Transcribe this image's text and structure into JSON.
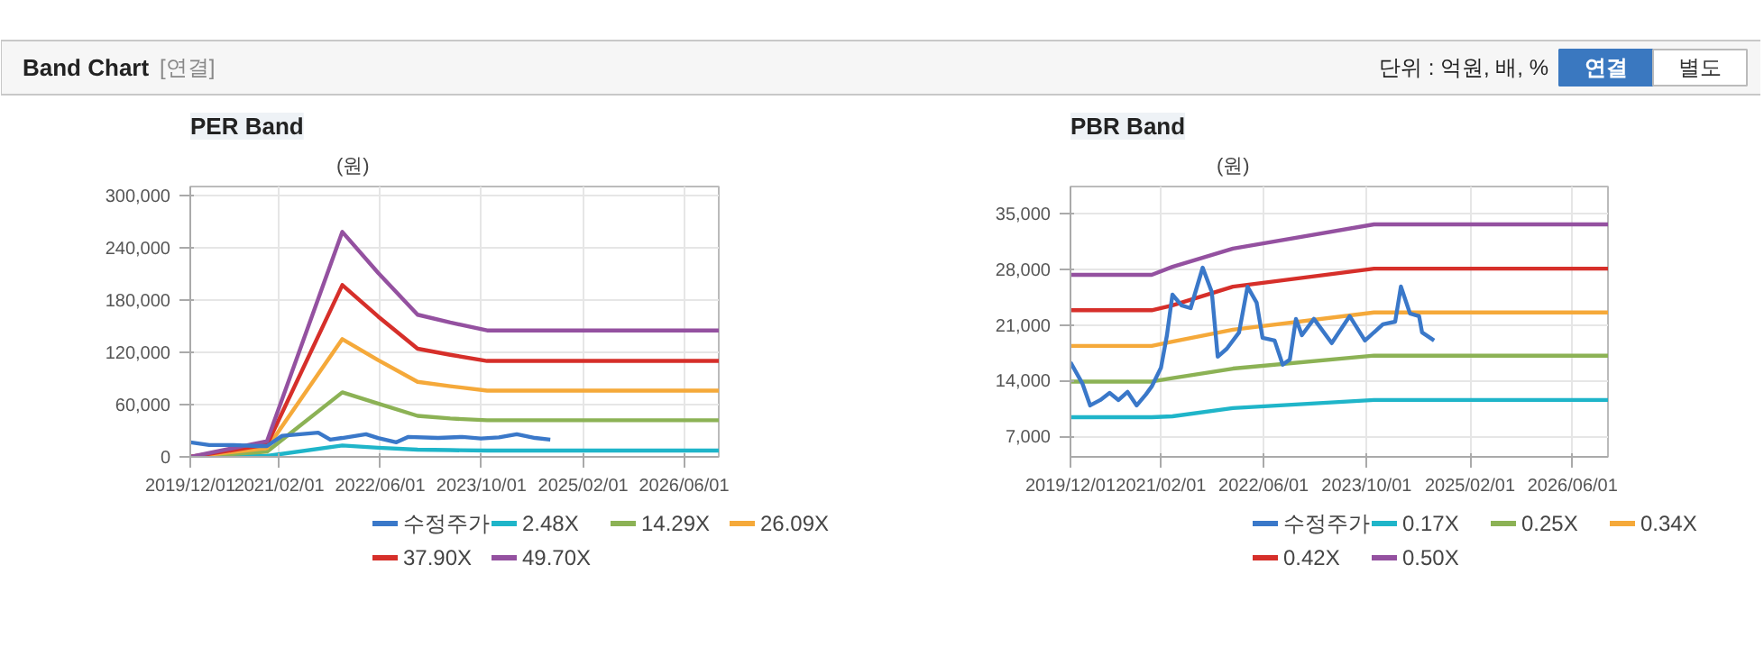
{
  "chart_data": [
    {
      "type": "other",
      "title": "Band Chart",
      "annotations": [
        "[연결]",
        "단위 : 억원, 배, %",
        "연결",
        "별도"
      ]
    },
    {
      "type": "line",
      "title": "PER Band",
      "ylabel": "(원)",
      "grid": true,
      "legend": "bottom",
      "xlim": [
        "2019-12-01",
        "2026-11-15"
      ],
      "xticks": [
        {
          "value": "2019-12-01",
          "label": "2019/12/01"
        },
        {
          "value": "2021-02-01",
          "label": "2021/02/01"
        },
        {
          "value": "2022-06-01",
          "label": "2022/06/01"
        },
        {
          "value": "2023-10-01",
          "label": "2023/10/01"
        },
        {
          "value": "2025-02-01",
          "label": "2025/02/01"
        },
        {
          "value": "2026-06-01",
          "label": "2026/06/01"
        }
      ],
      "ylim": [
        0,
        310000
      ],
      "yticks": [
        0,
        {
          "value": 60000,
          "label": "60,000"
        },
        {
          "value": 120000,
          "label": "120,000"
        },
        {
          "value": 180000,
          "label": "180,000"
        },
        {
          "value": 240000,
          "label": "240,000"
        },
        {
          "value": 300000,
          "label": "300,000"
        }
      ],
      "series": [
        {
          "name": "수정주가",
          "color": "#3a78c9",
          "x": [
            "2019-12-01",
            "2020-03-01",
            "2020-06-25",
            "2020-10-20",
            "2020-12-04",
            "2021-02-15",
            "2021-08-07",
            "2021-10-04",
            "2021-12-01",
            "2022-03-25",
            "2022-05-22",
            "2022-08-18",
            "2022-10-15",
            "2023-03-07",
            "2023-07-01",
            "2023-09-28",
            "2023-12-24",
            "2024-03-19",
            "2024-06-15",
            "2024-08-27"
          ],
          "values": [
            16700,
            13600,
            13600,
            12400,
            12400,
            24100,
            27800,
            19800,
            21650,
            26000,
            21650,
            16700,
            22900,
            21650,
            22900,
            21000,
            22300,
            26000,
            21650,
            19800
          ]
        },
        {
          "name": "2.48X",
          "color": "#1fb5c9",
          "x": [
            "2019-12-01",
            "2020-12-04",
            "2021-12-01",
            "2022-05-22",
            "2022-11-28",
            "2023-05-04",
            "2023-10-28",
            "2026-11-15"
          ],
          "values": [
            0,
            1000,
            13000,
            10500,
            8200,
            7700,
            7200,
            7200
          ]
        },
        {
          "name": "14.29X",
          "color": "#8cb255",
          "x": [
            "2019-12-01",
            "2020-12-04",
            "2021-12-01",
            "2022-05-22",
            "2022-11-28",
            "2023-05-04",
            "2023-10-28",
            "2026-11-15"
          ],
          "values": [
            0,
            6000,
            74000,
            61000,
            47000,
            44000,
            42000,
            42000
          ]
        },
        {
          "name": "26.09X",
          "color": "#f5a93a",
          "x": [
            "2019-12-01",
            "2020-12-04",
            "2021-12-01",
            "2022-05-22",
            "2022-11-28",
            "2023-05-04",
            "2023-10-28",
            "2026-11-15"
          ],
          "values": [
            0,
            10000,
            135000,
            111000,
            86000,
            81000,
            76000,
            76000
          ]
        },
        {
          "name": "37.90X",
          "color": "#d62f2a",
          "x": [
            "2019-12-01",
            "2020-12-04",
            "2021-12-01",
            "2022-05-22",
            "2022-11-28",
            "2023-05-04",
            "2023-10-28",
            "2026-11-15"
          ],
          "values": [
            0,
            14000,
            197000,
            161000,
            124000,
            117000,
            110000,
            110000
          ]
        },
        {
          "name": "49.70X",
          "color": "#9451a0",
          "x": [
            "2019-12-01",
            "2020-12-04",
            "2021-12-01",
            "2022-05-22",
            "2022-11-28",
            "2023-05-04",
            "2023-10-28",
            "2026-11-15"
          ],
          "values": [
            0,
            18000,
            258000,
            211000,
            163000,
            154000,
            145000,
            145000
          ]
        }
      ]
    },
    {
      "type": "line",
      "title": "PBR Band",
      "ylabel": "(원)",
      "grid": true,
      "legend": "bottom",
      "xlim": [
        "2019-12-01",
        "2026-11-15"
      ],
      "xticks": [
        {
          "value": "2019-12-01",
          "label": "2019/12/01"
        },
        {
          "value": "2021-02-01",
          "label": "2021/02/01"
        },
        {
          "value": "2022-06-01",
          "label": "2022/06/01"
        },
        {
          "value": "2023-10-01",
          "label": "2023/10/01"
        },
        {
          "value": "2025-02-01",
          "label": "2025/02/01"
        },
        {
          "value": "2026-06-01",
          "label": "2026/06/01"
        }
      ],
      "ylim": [
        4400,
        38400
      ],
      "yticks": [
        {
          "value": 7000,
          "label": "7,000"
        },
        {
          "value": 14000,
          "label": "14,000"
        },
        {
          "value": 21000,
          "label": "21,000"
        },
        {
          "value": 28000,
          "label": "28,000"
        },
        {
          "value": 35000,
          "label": "35,000"
        }
      ],
      "series": [
        {
          "name": "수정주가",
          "color": "#3a78c9",
          "x": [
            "2019-12-01",
            "2020-01-27",
            "2020-03-03",
            "2020-04-20",
            "2020-06-03",
            "2020-07-15",
            "2020-08-27",
            "2020-10-09",
            "2020-11-21",
            "2020-12-19",
            "2021-02-01",
            "2021-03-01",
            "2021-03-27",
            "2021-05-09",
            "2021-06-21",
            "2021-08-17",
            "2021-09-29",
            "2021-10-27",
            "2021-12-09",
            "2022-02-05",
            "2022-03-17",
            "2022-04-29",
            "2022-05-27",
            "2022-07-23",
            "2022-08-30",
            "2022-10-03",
            "2022-11-01",
            "2022-11-29",
            "2023-01-25",
            "2023-04-19",
            "2023-07-13",
            "2023-09-23",
            "2023-12-17",
            "2024-02-13",
            "2024-03-11",
            "2024-04-23",
            "2024-06-05",
            "2024-06-19",
            "2024-08-15"
          ],
          "values": [
            16300,
            13590,
            10870,
            11550,
            12440,
            11550,
            12570,
            10870,
            12230,
            13250,
            15630,
            19700,
            24800,
            23450,
            23100,
            28200,
            25150,
            17000,
            18000,
            20050,
            25800,
            23800,
            19370,
            19030,
            16000,
            16650,
            21750,
            19700,
            21750,
            18700,
            22100,
            19030,
            21070,
            21400,
            25820,
            22430,
            22090,
            20050,
            19030
          ]
        },
        {
          "name": "0.17X",
          "color": "#1fb5c9",
          "x": [
            "2019-12-01",
            "2020-12-19",
            "2021-03-27",
            "2022-01-07",
            "2023-11-05",
            "2026-11-15"
          ],
          "values": [
            9380,
            9380,
            9500,
            10530,
            11550,
            11550
          ]
        },
        {
          "name": "0.25X",
          "color": "#8cb255",
          "x": [
            "2019-12-01",
            "2020-12-19",
            "2021-03-27",
            "2022-01-07",
            "2023-11-05",
            "2026-11-15"
          ],
          "values": [
            13870,
            13870,
            14300,
            15500,
            17130,
            17130
          ]
        },
        {
          "name": "0.34X",
          "color": "#f5a93a",
          "x": [
            "2019-12-01",
            "2020-12-19",
            "2021-03-27",
            "2022-01-07",
            "2023-11-05",
            "2026-11-15"
          ],
          "values": [
            18350,
            18350,
            18900,
            20400,
            22560,
            22560
          ]
        },
        {
          "name": "0.42X",
          "color": "#d62f2a",
          "x": [
            "2019-12-01",
            "2020-12-19",
            "2021-03-27",
            "2022-01-07",
            "2023-11-05",
            "2026-11-15"
          ],
          "values": [
            22840,
            22840,
            23450,
            25800,
            28070,
            28070
          ]
        },
        {
          "name": "0.50X",
          "color": "#9451a0",
          "x": [
            "2019-12-01",
            "2020-12-19",
            "2021-03-27",
            "2022-01-07",
            "2023-11-05",
            "2026-11-15"
          ],
          "values": [
            27300,
            27300,
            28300,
            30600,
            33640,
            33640
          ]
        }
      ]
    }
  ]
}
